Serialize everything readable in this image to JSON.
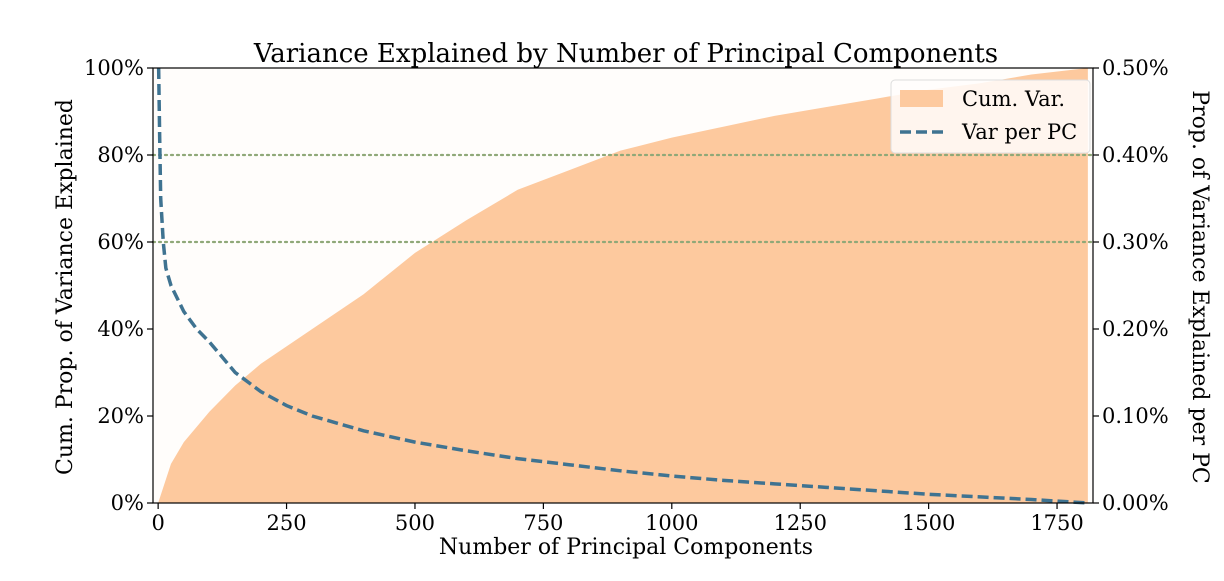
{
  "chart_data": {
    "type": "area",
    "title": "Variance Explained by Number of Principal Components",
    "xlabel": "Number of Principal Components",
    "ylabel": "Cum. Prop. of Variance Explained",
    "y2label": "Prop. of Variance Explained per PC",
    "xlim": [
      -10,
      1820
    ],
    "ylim": [
      0,
      1.0
    ],
    "y2lim": [
      0,
      0.005
    ],
    "x_ticks": [
      0,
      250,
      500,
      750,
      1000,
      1250,
      1500,
      1750
    ],
    "x_tick_labels": [
      "0",
      "250",
      "500",
      "750",
      "1000",
      "1250",
      "1500",
      "1750"
    ],
    "y_ticks": [
      0,
      0.2,
      0.4,
      0.6,
      0.8,
      1.0
    ],
    "y_tick_labels": [
      "0%",
      "20%",
      "40%",
      "60%",
      "80%",
      "100%"
    ],
    "y2_ticks": [
      0,
      0.001,
      0.002,
      0.003,
      0.004,
      0.005
    ],
    "y2_tick_labels": [
      "0.00%",
      "0.10%",
      "0.20%",
      "0.30%",
      "0.40%",
      "0.50%"
    ],
    "reference_lines": [
      0.6,
      0.8
    ],
    "legend_placement": "top-right",
    "colors": {
      "cumulative_fill": "#fdc99e",
      "per_pc_line": "#3f7391",
      "reference_line": "#8fa878",
      "plot_background": "#fffdfb"
    },
    "series": [
      {
        "name": "Cum. Var.",
        "axis": "left",
        "style": "filled-area",
        "x": [
          0,
          25,
          50,
          100,
          150,
          200,
          250,
          300,
          400,
          500,
          600,
          700,
          800,
          900,
          1000,
          1100,
          1200,
          1300,
          1400,
          1500,
          1600,
          1700,
          1810
        ],
        "y": [
          0.0,
          0.09,
          0.14,
          0.21,
          0.27,
          0.32,
          0.36,
          0.4,
          0.48,
          0.575,
          0.65,
          0.72,
          0.765,
          0.81,
          0.84,
          0.865,
          0.89,
          0.91,
          0.93,
          0.95,
          0.965,
          0.985,
          1.0
        ]
      },
      {
        "name": "Var per PC",
        "axis": "right",
        "style": "dashed-line",
        "x": [
          1,
          3,
          5,
          10,
          15,
          25,
          50,
          75,
          100,
          150,
          200,
          250,
          300,
          400,
          500,
          600,
          700,
          800,
          900,
          1000,
          1100,
          1200,
          1300,
          1400,
          1500,
          1600,
          1700,
          1810
        ],
        "y": [
          0.005,
          0.0042,
          0.0035,
          0.003,
          0.0027,
          0.0025,
          0.0022,
          0.002,
          0.00185,
          0.0015,
          0.00128,
          0.00112,
          0.001,
          0.00083,
          0.0007,
          0.0006,
          0.00051,
          0.00044,
          0.00037,
          0.00031,
          0.00026,
          0.00022,
          0.00018,
          0.00014,
          0.0001,
          7e-05,
          4e-05,
          0.0
        ]
      }
    ]
  }
}
